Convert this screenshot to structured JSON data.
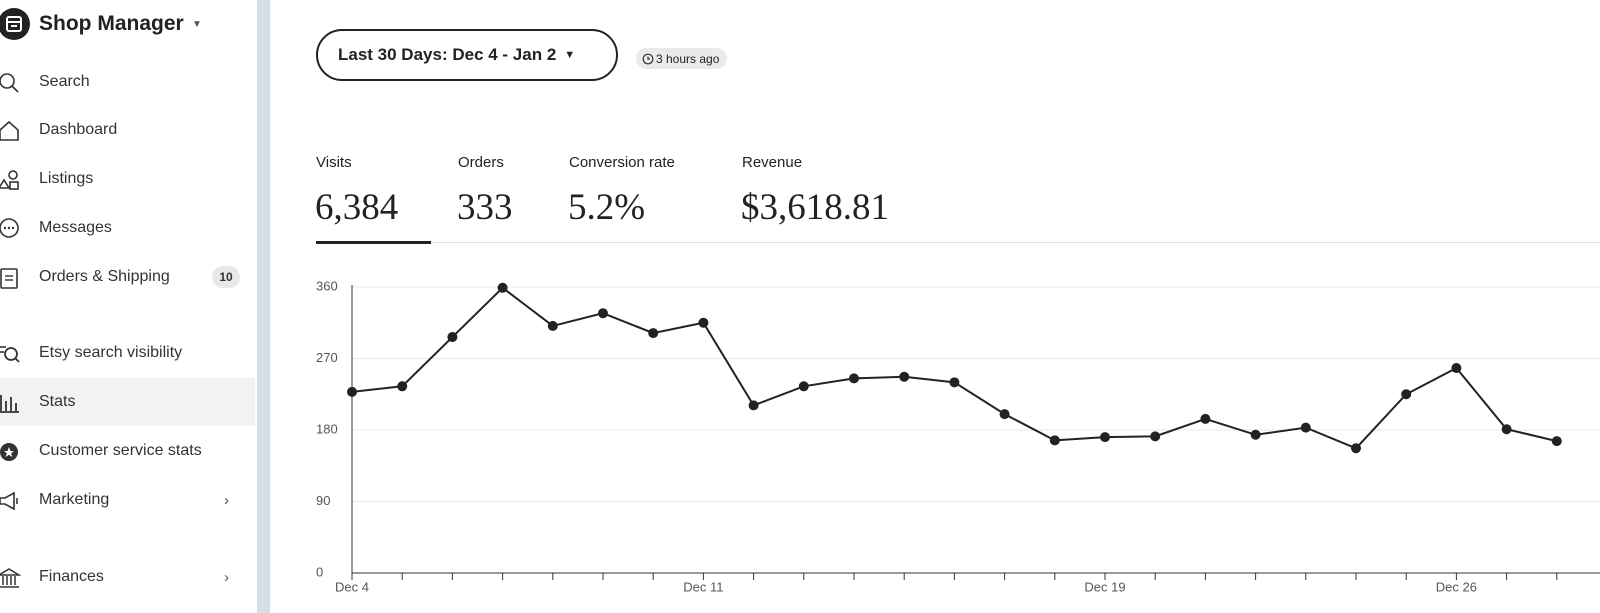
{
  "sidebar": {
    "title": "Shop Manager",
    "items": [
      {
        "label": "Search"
      },
      {
        "label": "Dashboard"
      },
      {
        "label": "Listings"
      },
      {
        "label": "Messages"
      },
      {
        "label": "Orders & Shipping",
        "badge": "10"
      },
      {
        "label": "Etsy search visibility"
      },
      {
        "label": "Stats"
      },
      {
        "label": "Customer service stats"
      },
      {
        "label": "Marketing"
      },
      {
        "label": "Finances"
      }
    ]
  },
  "header": {
    "date_range": "Last 30 Days: Dec 4 - Jan 2",
    "updated": "3 hours ago"
  },
  "stats": [
    {
      "label": "Visits",
      "value": "6,384"
    },
    {
      "label": "Orders",
      "value": "333"
    },
    {
      "label": "Conversion rate",
      "value": "5.2%"
    },
    {
      "label": "Revenue",
      "value": "$3,618.81"
    }
  ],
  "chart_data": {
    "type": "line",
    "categories": [
      "Dec 4",
      null,
      null,
      null,
      null,
      null,
      null,
      "Dec 11",
      null,
      null,
      null,
      null,
      null,
      null,
      null,
      "Dec 19",
      null,
      null,
      null,
      null,
      null,
      null,
      "Dec 26",
      null,
      null
    ],
    "values": [
      228,
      235,
      297,
      359,
      311,
      327,
      302,
      315,
      211,
      235,
      245,
      247,
      240,
      200,
      167,
      171,
      172,
      194,
      174,
      183,
      157,
      225,
      258,
      181,
      166
    ],
    "color": "#222222",
    "ylim": [
      0,
      360
    ],
    "yticks": [
      0,
      90,
      180,
      270,
      360
    ],
    "grid": true
  }
}
